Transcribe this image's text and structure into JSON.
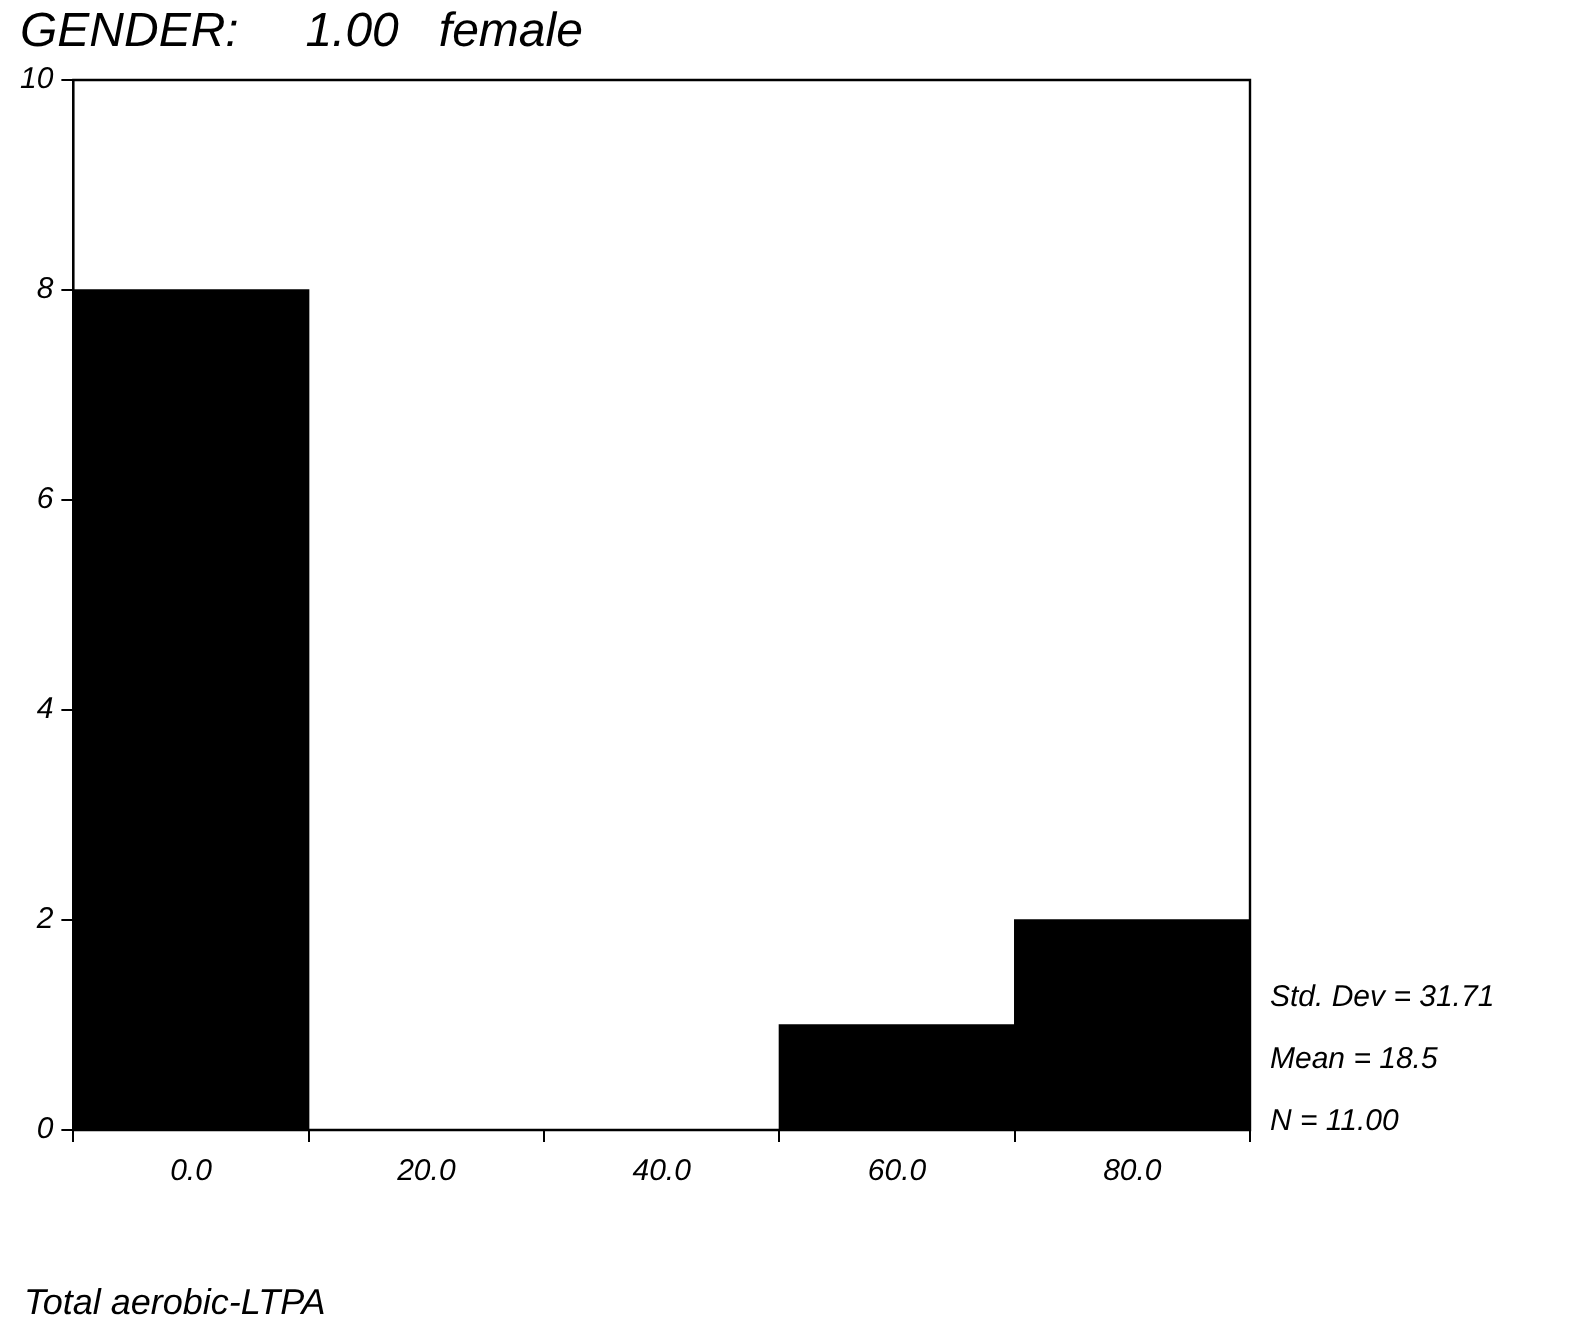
{
  "chart_data": {
    "type": "histogram",
    "title": "GENDER:     1.00   female",
    "xlabel": "Total aerobic-LTPA",
    "bins": [
      -10,
      10,
      30,
      50,
      70,
      90
    ],
    "values": [
      8,
      0,
      0,
      1,
      2
    ],
    "color": "#000000",
    "xlim": [
      -10,
      90
    ],
    "xticks": [
      {
        "value": 0,
        "label": "0.0"
      },
      {
        "value": 20,
        "label": "20.0"
      },
      {
        "value": 40,
        "label": "40.0"
      },
      {
        "value": 60,
        "label": "60.0"
      },
      {
        "value": 80,
        "label": "80.0"
      }
    ],
    "ylim": [
      0,
      10
    ],
    "yticks": [
      0,
      2,
      4,
      6,
      8,
      10
    ],
    "grid": false,
    "legend": false,
    "annotations": [
      "Std. Dev = 31.71",
      "Mean = 18.5",
      "N = 11.00"
    ]
  }
}
